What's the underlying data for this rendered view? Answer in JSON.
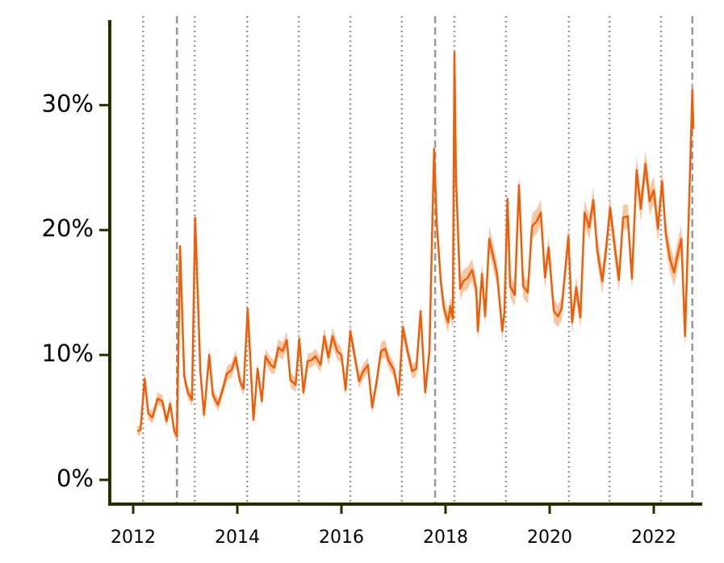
{
  "chart_data": {
    "type": "line",
    "x": [
      2012.08,
      2012.14,
      2012.22,
      2012.29,
      2012.37,
      2012.47,
      2012.56,
      2012.64,
      2012.71,
      2012.79,
      2012.84,
      2012.9,
      2012.98,
      2013.05,
      2013.13,
      2013.19,
      2013.29,
      2013.36,
      2013.46,
      2013.53,
      2013.63,
      2013.71,
      2013.8,
      2013.89,
      2013.97,
      2014.05,
      2014.12,
      2014.2,
      2014.31,
      2014.39,
      2014.47,
      2014.54,
      2014.64,
      2014.71,
      2014.79,
      2014.87,
      2014.95,
      2015.02,
      2015.12,
      2015.19,
      2015.27,
      2015.35,
      2015.43,
      2015.5,
      2015.6,
      2015.67,
      2015.75,
      2015.83,
      2015.92,
      2016.0,
      2016.08,
      2016.17,
      2016.25,
      2016.34,
      2016.42,
      2016.51,
      2016.59,
      2016.67,
      2016.76,
      2016.84,
      2016.91,
      2017.01,
      2017.1,
      2017.18,
      2017.27,
      2017.36,
      2017.44,
      2017.52,
      2017.61,
      2017.69,
      2017.78,
      2017.83,
      2017.91,
      2017.97,
      2018.05,
      2018.09,
      2018.14,
      2018.17,
      2018.2,
      2018.28,
      2018.34,
      2018.43,
      2018.51,
      2018.59,
      2018.62,
      2018.7,
      2018.76,
      2018.84,
      2018.93,
      2018.99,
      2019.09,
      2019.13,
      2019.19,
      2019.24,
      2019.33,
      2019.41,
      2019.49,
      2019.58,
      2019.66,
      2019.75,
      2019.83,
      2019.91,
      2019.98,
      2020.08,
      2020.16,
      2020.23,
      2020.36,
      2020.43,
      2020.51,
      2020.59,
      2020.67,
      2020.76,
      2020.84,
      2020.91,
      2021.01,
      2021.09,
      2021.16,
      2021.24,
      2021.33,
      2021.41,
      2021.5,
      2021.58,
      2021.67,
      2021.75,
      2021.84,
      2021.92,
      2022.0,
      2022.08,
      2022.16,
      2022.23,
      2022.31,
      2022.39,
      2022.45,
      2022.53,
      2022.6,
      2022.68,
      2022.74,
      2022.76
    ],
    "series": [
      {
        "color": "#f25c05",
        "band_color": "#f8c7a4",
        "values": [
          3.9,
          4.0,
          8.1,
          5.3,
          5.0,
          6.5,
          6.3,
          4.7,
          6.1,
          3.9,
          3.5,
          18.7,
          8.3,
          7.0,
          6.4,
          21.0,
          8.7,
          5.2,
          10.0,
          6.8,
          6.0,
          7.1,
          8.5,
          8.8,
          9.8,
          7.9,
          7.3,
          13.7,
          4.8,
          8.9,
          6.3,
          9.9,
          9.2,
          9.0,
          10.6,
          10.3,
          11.2,
          8.0,
          7.6,
          11.3,
          7.0,
          9.5,
          9.6,
          9.9,
          9.2,
          11.5,
          9.8,
          11.5,
          10.3,
          10.0,
          7.2,
          11.9,
          10.0,
          7.9,
          8.7,
          9.2,
          5.8,
          7.7,
          10.3,
          10.5,
          9.5,
          8.8,
          6.8,
          12.2,
          10.3,
          8.7,
          8.9,
          13.5,
          7.0,
          10.3,
          26.5,
          20.6,
          15.8,
          13.7,
          12.6,
          13.9,
          12.9,
          34.2,
          24.2,
          15.3,
          15.9,
          16.2,
          16.8,
          15.3,
          11.9,
          16.5,
          13.1,
          19.3,
          17.6,
          16.5,
          11.9,
          13.4,
          22.5,
          15.5,
          14.8,
          23.6,
          15.5,
          15.0,
          20.3,
          20.7,
          21.4,
          16.2,
          18.6,
          13.5,
          13.1,
          13.7,
          19.5,
          12.6,
          15.4,
          13.0,
          21.4,
          20.2,
          22.4,
          18.5,
          15.9,
          18.7,
          21.8,
          19.0,
          16.0,
          21.0,
          21.1,
          16.1,
          24.8,
          21.7,
          25.3,
          22.3,
          23.2,
          20.1,
          23.9,
          19.7,
          17.7,
          16.6,
          17.9,
          19.3,
          11.5,
          22.3,
          31.2,
          28.1
        ],
        "errors": [
          0.4,
          0.4,
          0.5,
          0.5,
          0.5,
          0.5,
          0.5,
          0.5,
          0.5,
          0.4,
          0.4,
          0.6,
          0.6,
          0.5,
          0.5,
          0.6,
          0.6,
          0.5,
          0.6,
          0.5,
          0.5,
          0.5,
          0.6,
          0.6,
          0.6,
          0.5,
          0.5,
          0.6,
          0.5,
          0.5,
          0.5,
          0.6,
          0.6,
          0.6,
          0.7,
          0.7,
          0.7,
          0.6,
          0.6,
          0.7,
          0.6,
          0.6,
          0.6,
          0.6,
          0.6,
          0.7,
          0.7,
          0.7,
          0.7,
          0.6,
          0.6,
          0.7,
          0.6,
          0.6,
          0.6,
          0.6,
          0.5,
          0.6,
          0.7,
          0.7,
          0.6,
          0.6,
          0.5,
          0.7,
          0.6,
          0.6,
          0.6,
          0.7,
          0.6,
          0.7,
          0.9,
          0.9,
          0.9,
          0.8,
          0.8,
          0.8,
          0.8,
          1.0,
          1.0,
          0.9,
          0.9,
          0.9,
          0.9,
          0.9,
          0.8,
          0.9,
          0.8,
          1.0,
          1.0,
          0.9,
          0.8,
          0.8,
          1.0,
          0.9,
          0.9,
          1.0,
          0.9,
          0.9,
          1.0,
          1.0,
          1.0,
          0.9,
          1.0,
          0.9,
          0.9,
          0.9,
          1.0,
          0.9,
          0.9,
          0.9,
          1.0,
          1.0,
          1.0,
          1.0,
          1.0,
          1.0,
          1.0,
          1.0,
          1.0,
          1.0,
          1.0,
          1.0,
          1.1,
          1.1,
          1.1,
          1.1,
          1.1,
          1.1,
          1.1,
          1.1,
          1.1,
          1.1,
          1.1,
          1.1,
          1.0,
          1.1,
          1.2,
          1.2
        ]
      }
    ],
    "vlines_dotted": [
      2012.19,
      2013.18,
      2014.19,
      2015.18,
      2016.17,
      2017.16,
      2018.17,
      2019.16,
      2020.37,
      2021.15,
      2022.14
    ],
    "vlines_dashed": [
      2012.84,
      2017.8,
      2022.74
    ],
    "xlim": [
      2011.55,
      2022.93
    ],
    "ylim": [
      -1.94,
      36.8
    ],
    "xticks": [
      2012,
      2014,
      2016,
      2018,
      2020,
      2022
    ],
    "yticks": [
      {
        "value": 0,
        "label": "0%"
      },
      {
        "value": 10,
        "label": "10%"
      },
      {
        "value": 20,
        "label": "20%"
      },
      {
        "value": 30,
        "label": "30%"
      }
    ],
    "axis_color": "#2b2b00"
  }
}
